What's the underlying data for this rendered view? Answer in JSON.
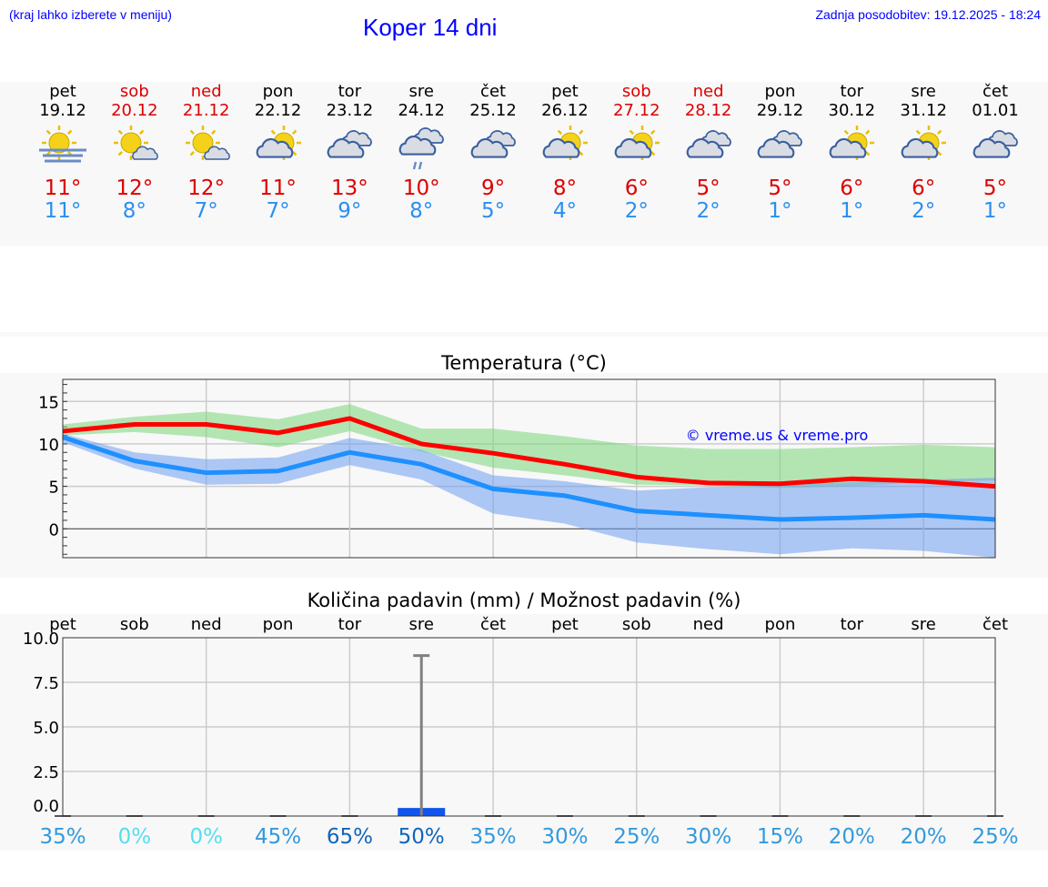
{
  "header": {
    "hint": "(kraj lahko izberete v meniju)",
    "title": "Koper 14 dni",
    "updated": "Zadnja posodobitev: 19.12.2025 - 18:24"
  },
  "days": [
    {
      "name": "pet",
      "date": "19.12",
      "weekend": false,
      "icon": "sun-fog-icon",
      "max": "11°",
      "min": "11°"
    },
    {
      "name": "sob",
      "date": "20.12",
      "weekend": true,
      "icon": "sun-small-cloud-icon",
      "max": "12°",
      "min": "8°"
    },
    {
      "name": "ned",
      "date": "21.12",
      "weekend": true,
      "icon": "sun-small-cloud-icon",
      "max": "12°",
      "min": "7°"
    },
    {
      "name": "pon",
      "date": "22.12",
      "weekend": false,
      "icon": "partly-cloudy-icon",
      "max": "11°",
      "min": "7°"
    },
    {
      "name": "tor",
      "date": "23.12",
      "weekend": false,
      "icon": "cloudy-icon",
      "max": "13°",
      "min": "9°"
    },
    {
      "name": "sre",
      "date": "24.12",
      "weekend": false,
      "icon": "cloudy-rain-icon",
      "max": "10°",
      "min": "8°"
    },
    {
      "name": "čet",
      "date": "25.12",
      "weekend": false,
      "icon": "cloudy-icon",
      "max": "9°",
      "min": "5°"
    },
    {
      "name": "pet",
      "date": "26.12",
      "weekend": false,
      "icon": "partly-cloudy-icon",
      "max": "8°",
      "min": "4°"
    },
    {
      "name": "sob",
      "date": "27.12",
      "weekend": true,
      "icon": "partly-cloudy-icon",
      "max": "6°",
      "min": "2°"
    },
    {
      "name": "ned",
      "date": "28.12",
      "weekend": true,
      "icon": "cloudy-icon",
      "max": "5°",
      "min": "2°"
    },
    {
      "name": "pon",
      "date": "29.12",
      "weekend": false,
      "icon": "cloudy-icon",
      "max": "5°",
      "min": "1°"
    },
    {
      "name": "tor",
      "date": "30.12",
      "weekend": false,
      "icon": "partly-cloudy-icon",
      "max": "6°",
      "min": "1°"
    },
    {
      "name": "sre",
      "date": "31.12",
      "weekend": false,
      "icon": "partly-cloudy-icon",
      "max": "6°",
      "min": "2°"
    },
    {
      "name": "čet",
      "date": "01.01",
      "weekend": false,
      "icon": "cloudy-icon",
      "max": "5°",
      "min": "1°"
    }
  ],
  "chart_data": [
    {
      "type": "line",
      "title": "Temperatura (°C)",
      "ylim": [
        -3.4,
        17.6
      ],
      "yticks": [
        "15",
        "10",
        "5",
        "0"
      ],
      "ytick_values": [
        15,
        10,
        5,
        0
      ],
      "watermark": "© vreme.us & vreme.pro",
      "series": [
        {
          "name": "max",
          "color": "#ff0000",
          "values": [
            11.5,
            12.3,
            12.3,
            11.3,
            13,
            10,
            8.9,
            7.6,
            6.1,
            5.4,
            5.3,
            5.9,
            5.6,
            5.0
          ],
          "band_high": [
            12.3,
            13.2,
            13.8,
            12.9,
            14.7,
            11.8,
            11.8,
            10.9,
            9.8,
            9.4,
            9.4,
            9.6,
            9.9,
            9.6
          ],
          "band_low": [
            11,
            11.4,
            10.8,
            9.6,
            11.5,
            9.1,
            7.2,
            6.3,
            5.2,
            5.1,
            4.8,
            5.0,
            5.5,
            5.7
          ],
          "band_color": "#7ad67a"
        },
        {
          "name": "min",
          "color": "#1e90ff",
          "values": [
            10.8,
            8,
            6.6,
            6.8,
            9,
            7.6,
            4.7,
            3.9,
            2.1,
            1.6,
            1.1,
            1.3,
            1.6,
            1.1
          ],
          "band_high": [
            11.2,
            9,
            8.2,
            8.4,
            10.7,
            9.3,
            6.3,
            5.6,
            4.5,
            4.9,
            5.1,
            5.5,
            5.8,
            6.0
          ],
          "band_low": [
            10.2,
            7.1,
            5.2,
            5.3,
            7.5,
            5.8,
            1.8,
            0.6,
            -1.6,
            -2.4,
            -3,
            -2.3,
            -2.6,
            -3.4
          ],
          "band_color": "#6f9ff0"
        }
      ]
    },
    {
      "type": "bar",
      "title": "Količina padavin (mm) / Možnost padavin (%)",
      "ylim": [
        -0.5,
        10
      ],
      "yticks": [
        "10.0",
        "7.5",
        "5.0",
        "2.5",
        "0.0"
      ],
      "ytick_values": [
        10,
        7.5,
        5,
        2.5,
        0
      ],
      "categories": [
        "pet",
        "sob",
        "ned",
        "pon",
        "tor",
        "sre",
        "čet",
        "pet",
        "sob",
        "ned",
        "pon",
        "tor",
        "sre",
        "čet"
      ],
      "values": [
        0,
        0,
        0,
        0,
        0,
        0.3,
        0,
        0,
        0,
        0,
        0,
        0,
        0,
        0
      ],
      "error_high": [
        null,
        null,
        null,
        null,
        null,
        9,
        null,
        null,
        null,
        null,
        null,
        null,
        null,
        null
      ],
      "probability": [
        "35%",
        "0%",
        "0%",
        "45%",
        "65%",
        "50%",
        "35%",
        "30%",
        "25%",
        "30%",
        "15%",
        "20%",
        "20%",
        "25%"
      ],
      "probability_colors": [
        "#3399dd",
        "#55ddee",
        "#55ddee",
        "#3399dd",
        "#1166bb",
        "#1166bb",
        "#3399dd",
        "#3399dd",
        "#3399dd",
        "#3399dd",
        "#3399dd",
        "#3399dd",
        "#3399dd",
        "#3399dd"
      ]
    }
  ]
}
